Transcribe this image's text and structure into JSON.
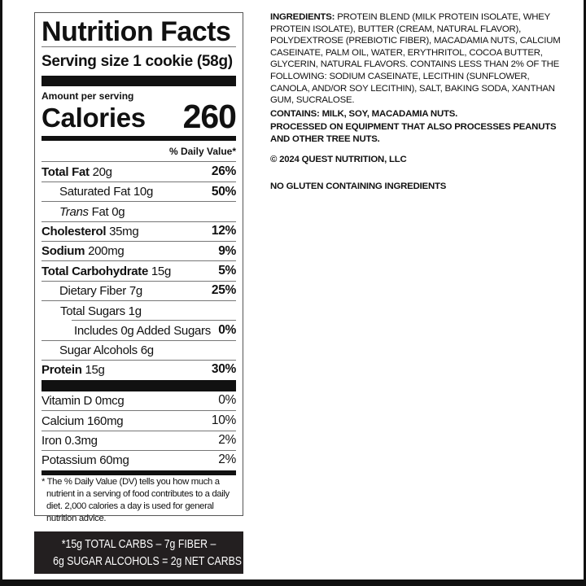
{
  "label": {
    "title": "Nutrition Facts",
    "serving_size": "Serving size 1 cookie (58g)",
    "amount_per_serving": "Amount per serving",
    "calories_label": "Calories",
    "calories": "260",
    "dv_header": "% Daily Value*",
    "nutrients": [
      {
        "name": "Total Fat",
        "amount": "20g",
        "dv": "26%"
      },
      {
        "name": "Saturated Fat",
        "amount": "10g",
        "dv": "50%"
      },
      {
        "name": "Trans",
        "name2": "Fat 0g"
      },
      {
        "name": "Cholesterol",
        "amount": "35mg",
        "dv": "12%"
      },
      {
        "name": "Sodium",
        "amount": "200mg",
        "dv": "9%"
      },
      {
        "name": "Total Carbohydrate",
        "amount": "15g",
        "dv": "5%"
      },
      {
        "name": "Dietary Fiber",
        "amount": "7g",
        "dv": "25%"
      },
      {
        "name": "Total Sugars",
        "amount": "1g"
      },
      {
        "name": "Includes 0g Added Sugars",
        "dv": "0%"
      },
      {
        "name": "Sugar Alcohols",
        "amount": "6g"
      },
      {
        "name": "Protein",
        "amount": "15g",
        "dv": "30%"
      }
    ],
    "vitamins": [
      {
        "name": "Vitamin D 0mcg",
        "dv": "0%"
      },
      {
        "name": "Calcium 160mg",
        "dv": "10%"
      },
      {
        "name": "Iron 0.3mg",
        "dv": "2%"
      },
      {
        "name": "Potassium 60mg",
        "dv": "2%"
      }
    ],
    "footnote": "* The % Daily Value (DV) tells you how much a nutrient in a serving of food contributes to a daily diet. 2,000 calories a day is used for general nutrition advice."
  },
  "net_carbs": {
    "line1": "*15g TOTAL CARBS – 7g FIBER –",
    "line2": "6g SUGAR ALCOHOLS = 2g NET CARBS"
  },
  "ingredients": {
    "heading": "INGREDIENTS:",
    "lines": [
      "PROTEIN BLEND (MILK PROTEIN ISOLATE, WHEY",
      "PROTEIN ISOLATE), BUTTER (CREAM, NATURAL FLAVOR),",
      "POLYDEXTROSE (PREBIOTIC FIBER), MACADAMIA NUTS, CALCIUM",
      "CASEINATE, PALM OIL, WATER, ERYTHRITOL, COCOA BUTTER,",
      "GLYCERIN, NATURAL FLAVORS. CONTAINS LESS THAN 2% OF THE",
      "FOLLOWING: SODIUM CASEINATE, LECITHIN (SUNFLOWER,",
      "CANOLA, AND/OR SOY LECITHIN), SALT, BAKING SODA, XANTHAN",
      "GUM, SUCRALOSE."
    ],
    "contains": "CONTAINS: MILK, SOY, MACADAMIA NUTS.",
    "processed": [
      "PROCESSED ON EQUIPMENT THAT ALSO PROCESSES PEANUTS",
      "AND OTHER TREE NUTS."
    ],
    "copyright": "© 2024 QUEST NUTRITION, LLC",
    "gluten": "NO GLUTEN CONTAINING INGREDIENTS"
  }
}
